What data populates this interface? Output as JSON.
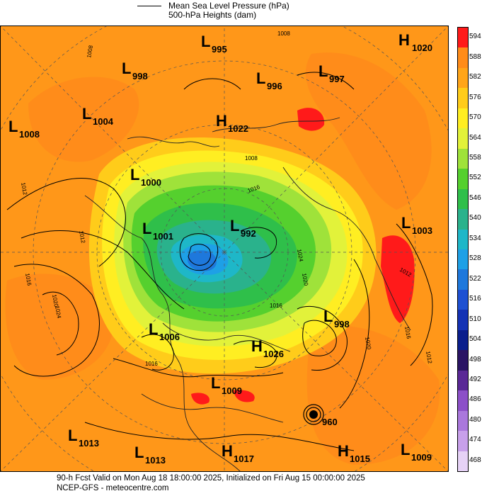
{
  "legend": {
    "line1": "Mean Sea Level Pressure (hPa)",
    "line2": "500-hPa Heights (dam)"
  },
  "colorbar": {
    "levels": [
      "594",
      "588",
      "582",
      "576",
      "570",
      "564",
      "558",
      "552",
      "546",
      "540",
      "534",
      "528",
      "522",
      "516",
      "510",
      "504",
      "498",
      "492",
      "486",
      "480",
      "474",
      "468"
    ],
    "colors": [
      "#ff1a1a",
      "#ff8c1a",
      "#ffa51a",
      "#ffcc1a",
      "#ffee22",
      "#e2f23a",
      "#9fe23a",
      "#55d02e",
      "#2fbf4a",
      "#2ab28c",
      "#1eb7c8",
      "#1ea0e6",
      "#1e78dc",
      "#1e50d2",
      "#1432b4",
      "#0a1e8c",
      "#2a1464",
      "#5a2896",
      "#8c50c8",
      "#aa78dc",
      "#c8a0ea",
      "#e6d2f6"
    ]
  },
  "systems": [
    {
      "type": "L",
      "value": "995"
    },
    {
      "type": "H",
      "value": "1020"
    },
    {
      "type": "L",
      "value": "998"
    },
    {
      "type": "L",
      "value": "996"
    },
    {
      "type": "L",
      "value": "997"
    },
    {
      "type": "L",
      "value": "1004"
    },
    {
      "type": "L",
      "value": "1008"
    },
    {
      "type": "H",
      "value": "1022"
    },
    {
      "type": "L",
      "value": "1000"
    },
    {
      "type": "L",
      "value": "1001"
    },
    {
      "type": "L",
      "value": "992"
    },
    {
      "type": "L",
      "value": "1003"
    },
    {
      "type": "L",
      "value": "1006"
    },
    {
      "type": "H",
      "value": "1026"
    },
    {
      "type": "L",
      "value": "998"
    },
    {
      "type": "L",
      "value": "1009"
    },
    {
      "type": "L",
      "value": "960"
    },
    {
      "type": "L",
      "value": "1013"
    },
    {
      "type": "L",
      "value": "1013"
    },
    {
      "type": "H",
      "value": "1017"
    },
    {
      "type": "H",
      "value": "1015"
    },
    {
      "type": "L",
      "value": "1009"
    }
  ],
  "isobar_labels": [
    "1008",
    "1008",
    "1008",
    "1012",
    "1016",
    "1020",
    "1024",
    "1024",
    "1020",
    "1016",
    "1016",
    "1012",
    "1016",
    "1012",
    "1020",
    "1012",
    "1016"
  ],
  "footer": {
    "line1": "90-h Fcst Valid on Mon Aug 18 18:00:00 2025, Initialized on Fri Aug 15 00:00:00 2025",
    "line2": "NCEP-GFS  - meteocentre.com"
  },
  "colors": {
    "ocean_warm": "#ff8c1a",
    "core_red": "#ff1a1a",
    "contour": "#000000"
  }
}
